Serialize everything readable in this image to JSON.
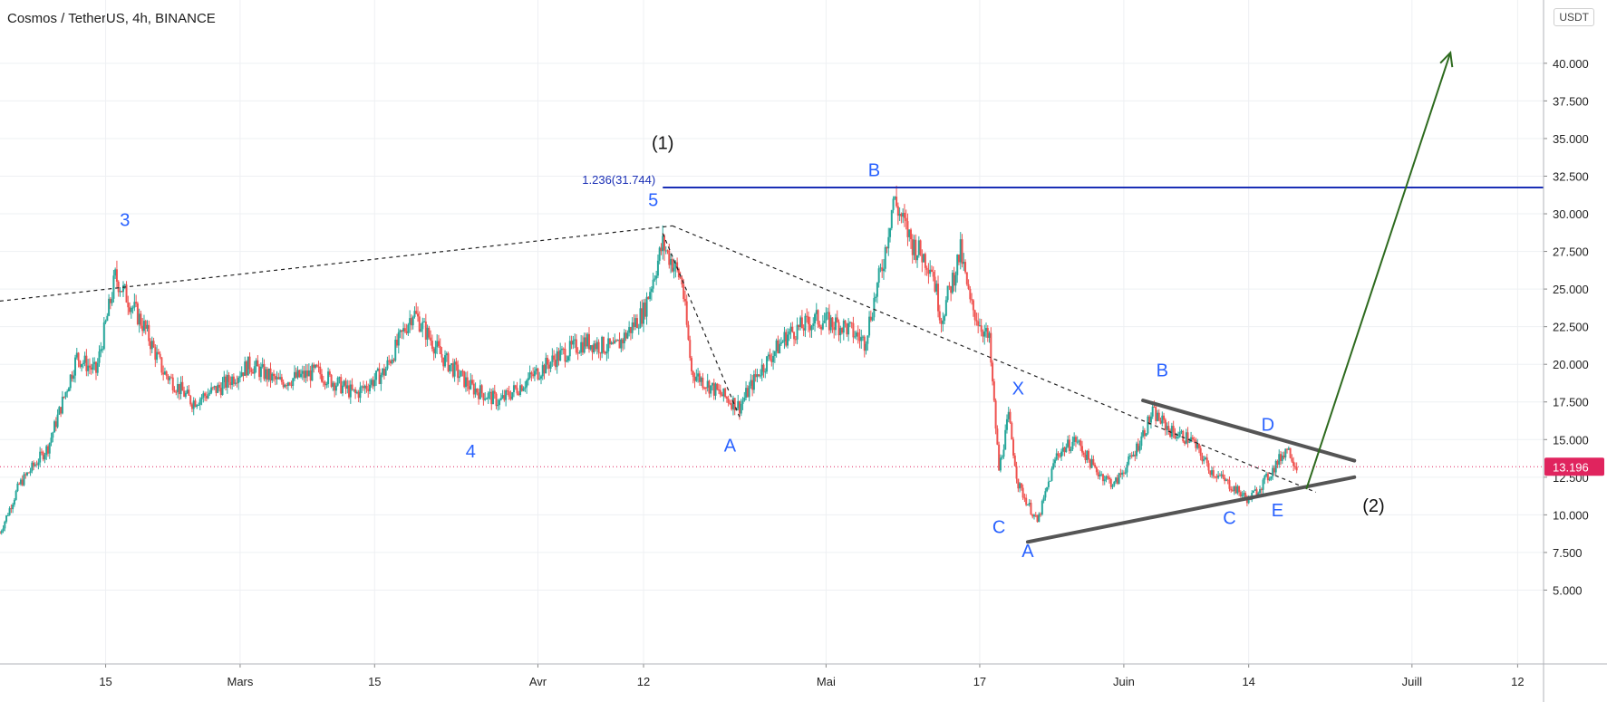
{
  "symbol_title": "Cosmos / TetherUS, 4h, BINANCE",
  "currency_button": "USDT",
  "chart_data": {
    "type": "candlestick",
    "title": "Cosmos / TetherUS, 4h, BINANCE",
    "x_axis": {
      "start": "2021-02-04",
      "end": "2021-07-13",
      "ticks": [
        {
          "date": "2021-02-15",
          "label": "15"
        },
        {
          "date": "2021-03-01",
          "label": "Mars"
        },
        {
          "date": "2021-03-15",
          "label": "15"
        },
        {
          "date": "2021-04-01",
          "label": "Avr"
        },
        {
          "date": "2021-04-12",
          "label": "12"
        },
        {
          "date": "2021-05-01",
          "label": "Mai"
        },
        {
          "date": "2021-05-17",
          "label": "17"
        },
        {
          "date": "2021-06-01",
          "label": "Juin"
        },
        {
          "date": "2021-06-14",
          "label": "14"
        },
        {
          "date": "2021-07-01",
          "label": "Juill"
        },
        {
          "date": "2021-07-12",
          "label": "12"
        }
      ]
    },
    "y_axis": {
      "range": [
        2.5,
        43
      ],
      "ticks": [
        "5.000",
        "7.500",
        "10.000",
        "12.500",
        "15.000",
        "17.500",
        "20.000",
        "22.500",
        "25.000",
        "27.500",
        "30.000",
        "32.500",
        "35.000",
        "37.500",
        "40.000"
      ],
      "grid": true
    },
    "price_anchors": [
      {
        "date": "2021-02-04",
        "price": 8.8
      },
      {
        "date": "2021-02-06",
        "price": 12.0
      },
      {
        "date": "2021-02-09",
        "price": 14.5
      },
      {
        "date": "2021-02-12",
        "price": 20.5
      },
      {
        "date": "2021-02-14",
        "price": 19.5
      },
      {
        "date": "2021-02-16",
        "price": 25.8
      },
      {
        "date": "2021-02-19",
        "price": 22.5
      },
      {
        "date": "2021-02-21",
        "price": 19.5
      },
      {
        "date": "2021-02-24",
        "price": 17.5
      },
      {
        "date": "2021-02-27",
        "price": 18.5
      },
      {
        "date": "2021-03-02",
        "price": 20.0
      },
      {
        "date": "2021-03-05",
        "price": 18.8
      },
      {
        "date": "2021-03-09",
        "price": 19.5
      },
      {
        "date": "2021-03-13",
        "price": 18.0
      },
      {
        "date": "2021-03-16",
        "price": 19.5
      },
      {
        "date": "2021-03-19",
        "price": 23.5
      },
      {
        "date": "2021-03-22",
        "price": 20.5
      },
      {
        "date": "2021-03-25",
        "price": 18.5
      },
      {
        "date": "2021-03-28",
        "price": 17.5
      },
      {
        "date": "2021-03-31",
        "price": 19.0
      },
      {
        "date": "2021-04-03",
        "price": 20.5
      },
      {
        "date": "2021-04-06",
        "price": 21.5
      },
      {
        "date": "2021-04-09",
        "price": 21.0
      },
      {
        "date": "2021-04-12",
        "price": 23.5
      },
      {
        "date": "2021-04-14",
        "price": 28.0
      },
      {
        "date": "2021-04-16",
        "price": 25.5
      },
      {
        "date": "2021-04-17",
        "price": 19.5
      },
      {
        "date": "2021-04-20",
        "price": 18.0
      },
      {
        "date": "2021-04-22",
        "price": 17.2
      },
      {
        "date": "2021-04-24",
        "price": 19.5
      },
      {
        "date": "2021-04-27",
        "price": 22.0
      },
      {
        "date": "2021-04-30",
        "price": 23.0
      },
      {
        "date": "2021-05-03",
        "price": 22.5
      },
      {
        "date": "2021-05-05",
        "price": 21.5
      },
      {
        "date": "2021-05-07",
        "price": 27.0
      },
      {
        "date": "2021-05-08",
        "price": 31.0
      },
      {
        "date": "2021-05-10",
        "price": 28.0
      },
      {
        "date": "2021-05-12",
        "price": 26.5
      },
      {
        "date": "2021-05-13",
        "price": 23.0
      },
      {
        "date": "2021-05-15",
        "price": 27.5
      },
      {
        "date": "2021-05-16",
        "price": 24.0
      },
      {
        "date": "2021-05-18",
        "price": 21.5
      },
      {
        "date": "2021-05-19",
        "price": 13.0
      },
      {
        "date": "2021-05-20",
        "price": 16.5
      },
      {
        "date": "2021-05-21",
        "price": 12.0
      },
      {
        "date": "2021-05-23",
        "price": 9.5
      },
      {
        "date": "2021-05-25",
        "price": 14.0
      },
      {
        "date": "2021-05-27",
        "price": 15.0
      },
      {
        "date": "2021-05-29",
        "price": 13.0
      },
      {
        "date": "2021-05-31",
        "price": 12.0
      },
      {
        "date": "2021-06-02",
        "price": 14.0
      },
      {
        "date": "2021-06-04",
        "price": 16.8
      },
      {
        "date": "2021-06-06",
        "price": 15.5
      },
      {
        "date": "2021-06-08",
        "price": 15.0
      },
      {
        "date": "2021-06-10",
        "price": 13.0
      },
      {
        "date": "2021-06-12",
        "price": 12.0
      },
      {
        "date": "2021-06-14",
        "price": 11.0
      },
      {
        "date": "2021-06-16",
        "price": 12.5
      },
      {
        "date": "2021-06-18",
        "price": 14.5
      },
      {
        "date": "2021-06-19",
        "price": 13.2
      }
    ],
    "current_price": {
      "value": 13.196,
      "label": "13.196"
    },
    "fib_level": {
      "label": "1.236(31.744)",
      "value": 31.744,
      "from_date": "2021-04-14"
    },
    "dashed_trendlines": [
      {
        "from": {
          "date": "2021-02-04",
          "price": 24.2
        },
        "to": {
          "date": "2021-04-15",
          "price": 29.2
        }
      },
      {
        "from": {
          "date": "2021-04-15",
          "price": 29.2
        },
        "to": {
          "date": "2021-06-21",
          "price": 11.5
        }
      },
      {
        "from": {
          "date": "2021-04-14",
          "price": 28.7
        },
        "to": {
          "date": "2021-04-22",
          "price": 16.5
        }
      }
    ],
    "triangle_lines": [
      {
        "from": {
          "date": "2021-06-03",
          "price": 17.6
        },
        "to": {
          "date": "2021-06-25",
          "price": 13.6
        }
      },
      {
        "from": {
          "date": "2021-05-22",
          "price": 8.2
        },
        "to": {
          "date": "2021-06-25",
          "price": 12.5
        }
      }
    ],
    "projection_arrow": {
      "from": {
        "date": "2021-06-20",
        "price": 11.7
      },
      "to": {
        "date": "2021-07-05",
        "price": 40.7
      }
    },
    "wave_labels": [
      {
        "text": "(1)",
        "date": "2021-04-14",
        "price": 34.3,
        "color": "#111111"
      },
      {
        "text": "5",
        "date": "2021-04-13",
        "price": 30.5,
        "color": "#2962ff"
      },
      {
        "text": "B",
        "date": "2021-05-06",
        "price": 32.5,
        "color": "#2962ff"
      },
      {
        "text": "3",
        "date": "2021-02-17",
        "price": 29.2,
        "color": "#2962ff"
      },
      {
        "text": "4",
        "date": "2021-03-25",
        "price": 13.8,
        "color": "#2962ff"
      },
      {
        "text": "A",
        "date": "2021-04-21",
        "price": 14.2,
        "color": "#2962ff"
      },
      {
        "text": "X",
        "date": "2021-05-21",
        "price": 18.0,
        "color": "#2962ff"
      },
      {
        "text": "B",
        "date": "2021-06-05",
        "price": 19.2,
        "color": "#2962ff"
      },
      {
        "text": "D",
        "date": "2021-06-16",
        "price": 15.6,
        "color": "#2962ff"
      },
      {
        "text": "C",
        "date": "2021-05-19",
        "price": 8.8,
        "color": "#2962ff"
      },
      {
        "text": "A",
        "date": "2021-05-22",
        "price": 7.2,
        "color": "#2962ff"
      },
      {
        "text": "C",
        "date": "2021-06-12",
        "price": 9.4,
        "color": "#2962ff"
      },
      {
        "text": "E",
        "date": "2021-06-17",
        "price": 9.9,
        "color": "#2962ff"
      },
      {
        "text": "(2)",
        "date": "2021-06-27",
        "price": 10.2,
        "color": "#111111"
      }
    ],
    "colors": {
      "up": "#26a69a",
      "down": "#ef5350",
      "fib_line": "#1a2fb5",
      "fib_text": "#1a2fb5",
      "triangle": "#555555",
      "arrow": "#2e6b1f",
      "price_line": "#e0245e",
      "grid": "#eef0f3"
    }
  }
}
